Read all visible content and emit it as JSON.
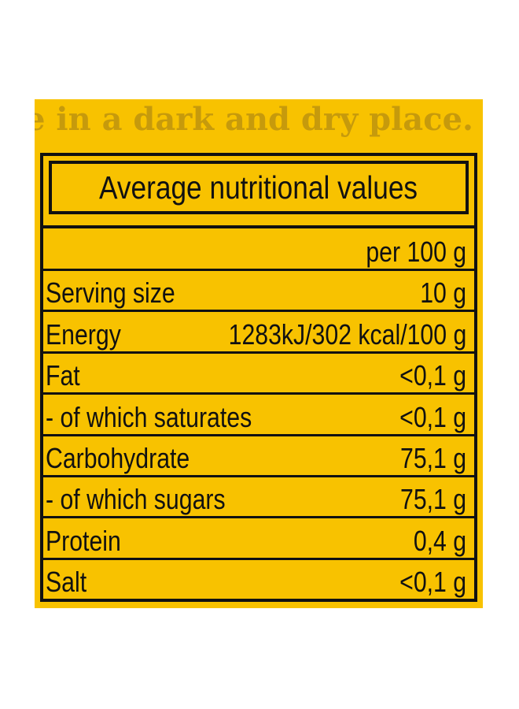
{
  "storage_text": "e in a dark and dry place.",
  "table": {
    "title": "Average nutritional values",
    "per_label": "per 100 g",
    "rows": [
      {
        "name": "Serving size",
        "value": "10 g"
      },
      {
        "name": "Energy",
        "value": "1283kJ/302 kcal/100 g"
      },
      {
        "name": "Fat",
        "value": "<0,1 g"
      },
      {
        "name": "- of which saturates",
        "value": "<0,1 g"
      },
      {
        "name": "Carbohydrate",
        "value": "75,1 g"
      },
      {
        "name": "- of which sugars",
        "value": "75,1 g"
      },
      {
        "name": "Protein",
        "value": "0,4 g"
      },
      {
        "name": "Salt",
        "value": "<0,1 g"
      }
    ]
  },
  "colors": {
    "panel": "#f8c200",
    "storage_text": "#c69a0c",
    "ink": "#111111"
  }
}
